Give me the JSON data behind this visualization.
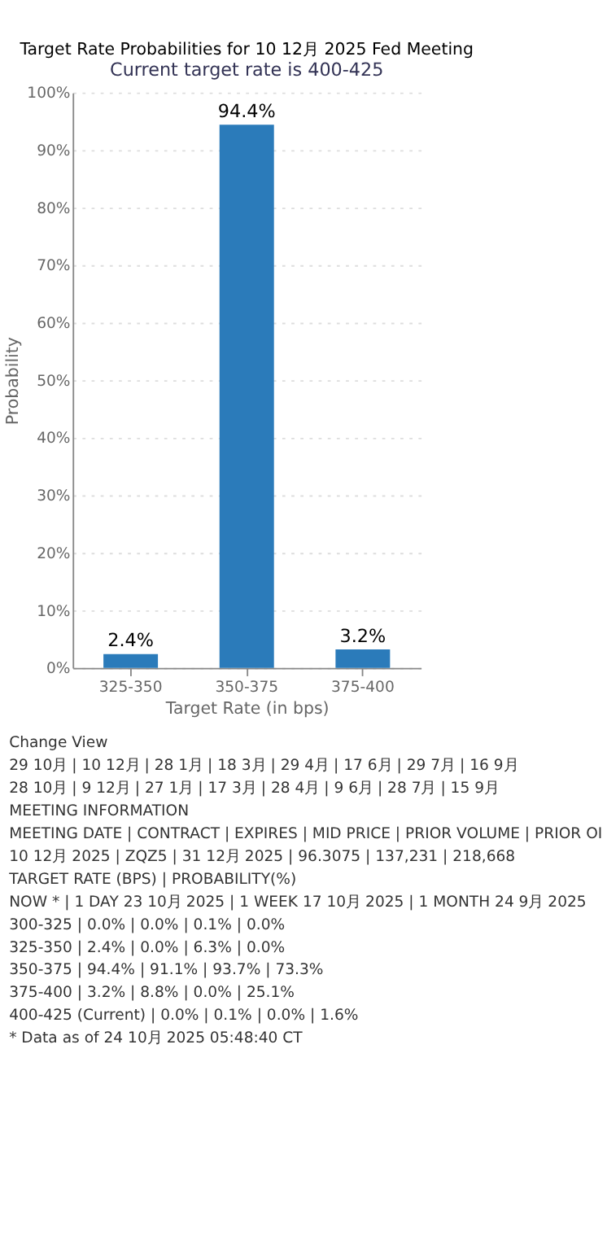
{
  "chart_data": {
    "type": "bar",
    "title": "Target Rate Probabilities for 10 12月 2025 Fed Meeting",
    "subtitle": "Current target rate is 400-425",
    "xlabel": "Target Rate (in bps)",
    "ylabel": "Probability",
    "categories": [
      "325-350",
      "350-375",
      "375-400"
    ],
    "values": [
      2.4,
      94.4,
      3.2
    ],
    "value_labels": [
      "2.4%",
      "94.4%",
      "3.2%"
    ],
    "color": "#2b7bba",
    "ylim": [
      0,
      100
    ],
    "yticks": [
      {
        "value": 0,
        "label": "0%"
      },
      {
        "value": 10,
        "label": "10%"
      },
      {
        "value": 20,
        "label": "20%"
      },
      {
        "value": 30,
        "label": "30%"
      },
      {
        "value": 40,
        "label": "40%"
      },
      {
        "value": 50,
        "label": "50%"
      },
      {
        "value": 60,
        "label": "60%"
      },
      {
        "value": 70,
        "label": "70%"
      },
      {
        "value": 80,
        "label": "80%"
      },
      {
        "value": 90,
        "label": "90%"
      },
      {
        "value": 100,
        "label": "100%"
      }
    ],
    "grid": "y",
    "annotations": [
      "Change View",
      "29 10月 | 10 12月 | 28 1月 | 18 3月 | 29 4月 | 17 6月 | 29 7月 | 16 9月",
      "28 10月 | 9 12月 | 27 1月 | 17 3月 | 28 4月 | 9 6月 | 28 7月 | 15 9月",
      "MEETING INFORMATION",
      "MEETING DATE | CONTRACT | EXPIRES | MID PRICE | PRIOR VOLUME | PRIOR OI",
      "10 12月 2025 | ZQZ5 | 31 12月 2025 | 96.3075 | 137,231 | 218,668",
      "TARGET RATE (BPS) | PROBABILITY(%)",
      "NOW * | 1 DAY 23 10月 2025 | 1 WEEK 17 10月 2025 | 1 MONTH 24 9月 2025",
      "300-325 | 0.0% | 0.0% | 0.1% | 0.0%",
      "325-350 | 2.4% | 0.0% | 6.3% | 0.0%",
      "350-375 | 94.4% | 91.1% | 93.7% | 73.3%",
      "375-400 | 3.2% | 8.8% | 0.0% | 25.1%",
      "400-425 (Current) | 0.0% | 0.1% | 0.0% | 1.6%",
      "* Data as of 24 10月 2025 05:48:40 CT"
    ]
  }
}
